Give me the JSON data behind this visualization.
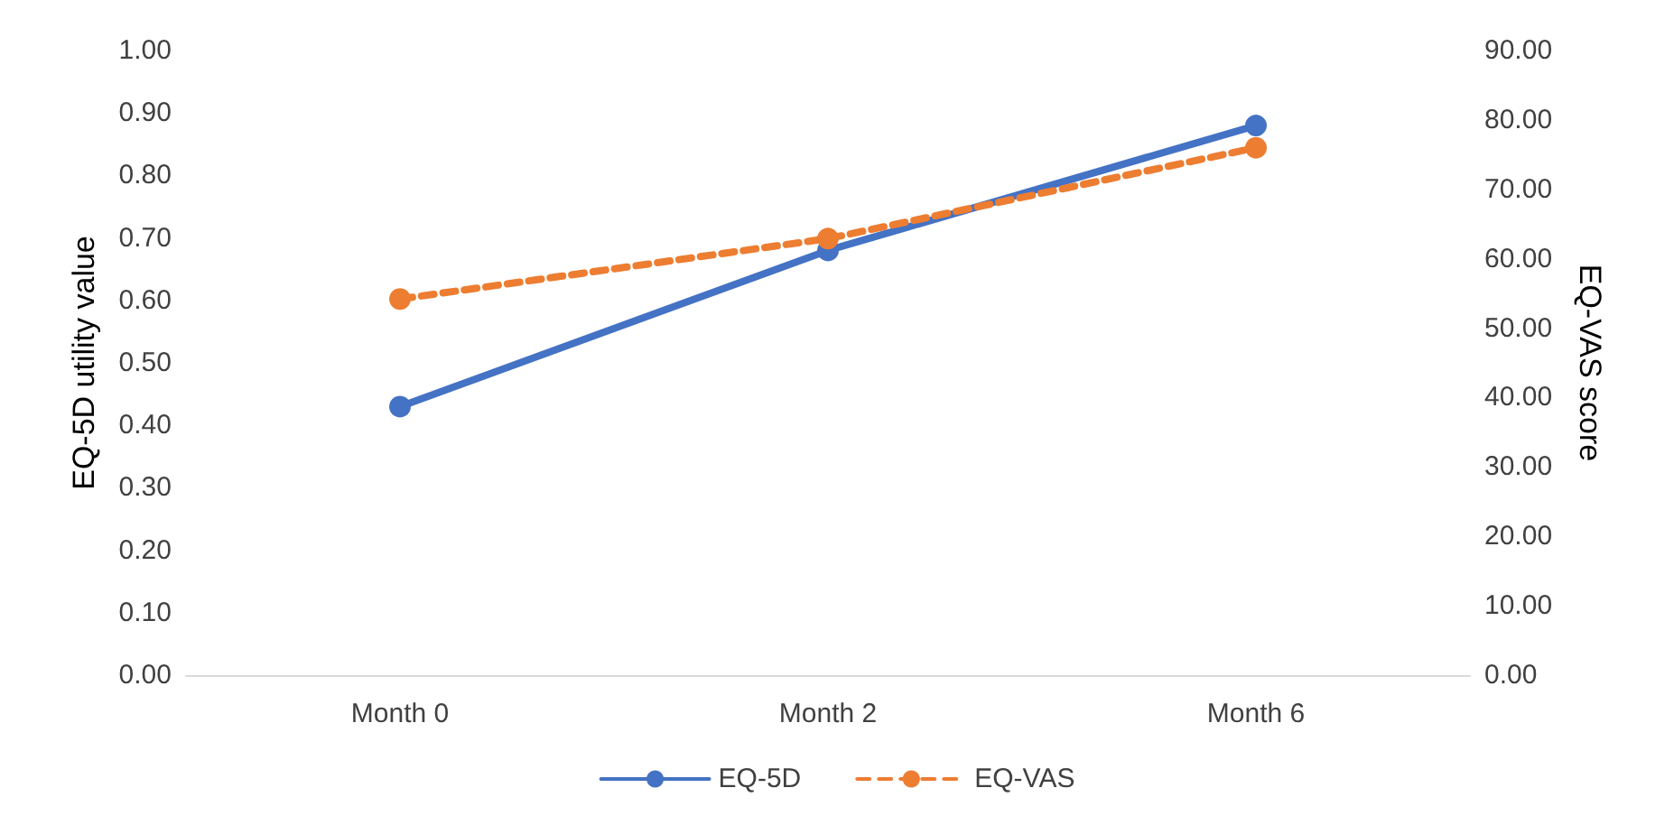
{
  "chart_data": {
    "type": "line",
    "categories": [
      "Month 0",
      "Month 2",
      "Month 6"
    ],
    "ylabel": "EQ-5D utility value",
    "y2label": "EQ-VAS score",
    "ylim": [
      0,
      1
    ],
    "yticks": [
      {
        "value": 0,
        "label": "0.00"
      },
      {
        "value": 0.1,
        "label": "0.10"
      },
      {
        "value": 0.2,
        "label": "0.20"
      },
      {
        "value": 0.3,
        "label": "0.30"
      },
      {
        "value": 0.4,
        "label": "0.40"
      },
      {
        "value": 0.5,
        "label": "0.50"
      },
      {
        "value": 0.6,
        "label": "0.60"
      },
      {
        "value": 0.7,
        "label": "0.70"
      },
      {
        "value": 0.8,
        "label": "0.80"
      },
      {
        "value": 0.9,
        "label": "0.90"
      },
      {
        "value": 1,
        "label": "1.00"
      }
    ],
    "y2lim": [
      0,
      90
    ],
    "y2ticks": [
      {
        "value": 0,
        "label": "0.00"
      },
      {
        "value": 10,
        "label": "10.00"
      },
      {
        "value": 20,
        "label": "20.00"
      },
      {
        "value": 30,
        "label": "30.00"
      },
      {
        "value": 40,
        "label": "40.00"
      },
      {
        "value": 50,
        "label": "50.00"
      },
      {
        "value": 60,
        "label": "60.00"
      },
      {
        "value": 70,
        "label": "70.00"
      },
      {
        "value": 80,
        "label": "80.00"
      },
      {
        "value": 90,
        "label": "90.00"
      }
    ],
    "series": [
      {
        "name": "EQ-5D",
        "color": "#4472c4",
        "values": [
          0.43,
          0.68,
          0.88
        ],
        "line_style": "solid"
      },
      {
        "name": "EQ-VAS",
        "color": "#ed7d31",
        "values": [
          54.2,
          62.9,
          76.0
        ],
        "axis": "y2",
        "line_style": "dashed"
      }
    ],
    "marker": "circle",
    "legend": "bottom",
    "grid": false
  }
}
